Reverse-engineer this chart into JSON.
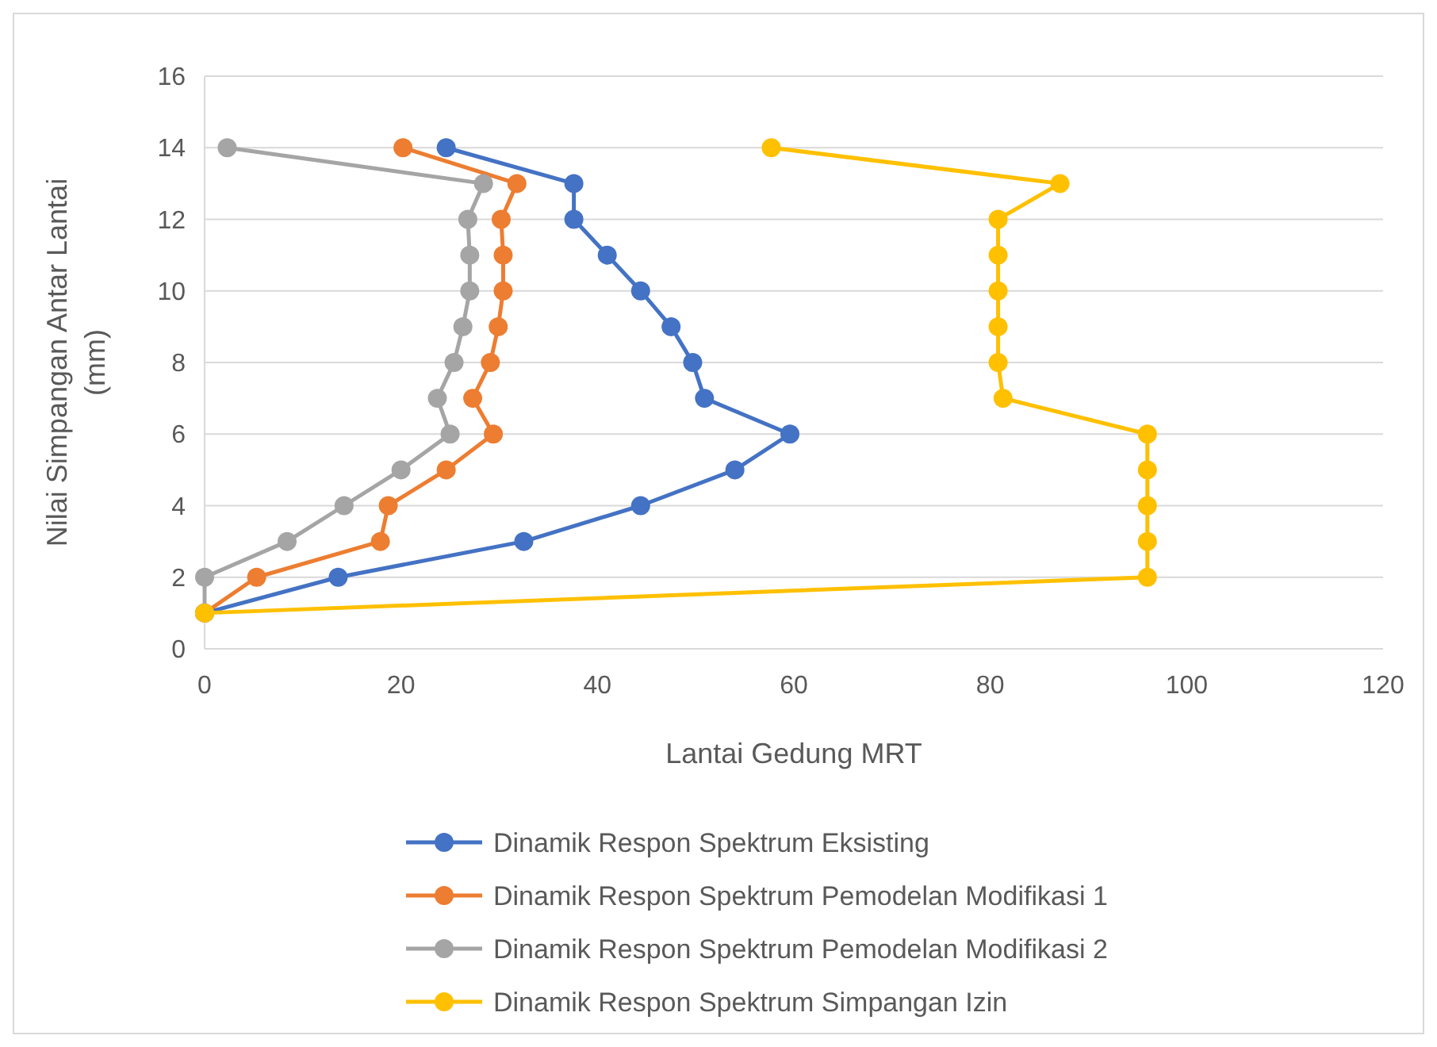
{
  "chart_data": {
    "type": "line",
    "xlabel": "Lantai Gedung MRT",
    "ylabel": "Nilai Simpangan Antar Lantai (mm)",
    "xlim": [
      0,
      120
    ],
    "xticks": [
      0,
      20,
      40,
      60,
      80,
      100,
      120
    ],
    "ylim": [
      0,
      16
    ],
    "yticks": [
      0,
      2,
      4,
      6,
      8,
      10,
      12,
      14,
      16
    ],
    "grid": "y",
    "legend": "bottom",
    "marker": "circle",
    "series": [
      {
        "name": "Dinamik Respon Spektrum Eksisting",
        "color": "#4472c4",
        "x": [
          0,
          13.6,
          32.5,
          44.4,
          54,
          59.6,
          50.9,
          49.7,
          47.5,
          44.4,
          41,
          37.6,
          37.6,
          24.6
        ],
        "values": [
          1,
          2,
          3,
          4,
          5,
          6,
          7,
          8,
          9,
          10,
          11,
          12,
          13,
          14
        ]
      },
      {
        "name": "Dinamik Respon Spektrum Pemodelan Modifikasi 1",
        "color": "#ed7d31",
        "x": [
          0,
          5.3,
          17.9,
          18.7,
          24.6,
          29.4,
          27.3,
          29.1,
          29.9,
          30.4,
          30.4,
          30.2,
          31.8,
          20.2
        ],
        "values": [
          1,
          2,
          3,
          4,
          5,
          6,
          7,
          8,
          9,
          10,
          11,
          12,
          13,
          14
        ]
      },
      {
        "name": "Dinamik Respon Spektrum Pemodelan Modifikasi 2",
        "color": "#a5a5a5",
        "x": [
          0,
          0,
          8.4,
          14.2,
          20,
          25,
          23.7,
          25.4,
          26.3,
          27,
          27,
          26.8,
          28.4,
          2.3
        ],
        "values": [
          1,
          2,
          3,
          4,
          5,
          6,
          7,
          8,
          9,
          10,
          11,
          12,
          13,
          14
        ]
      },
      {
        "name": "Dinamik Respon Spektrum Simpangan Izin",
        "color": "#ffc000",
        "x": [
          0,
          96,
          96,
          96,
          96,
          96,
          81.3,
          80.8,
          80.8,
          80.8,
          80.8,
          80.8,
          87.1,
          57.7
        ],
        "values": [
          1,
          2,
          3,
          4,
          5,
          6,
          7,
          8,
          9,
          10,
          11,
          12,
          13,
          14
        ]
      }
    ]
  }
}
